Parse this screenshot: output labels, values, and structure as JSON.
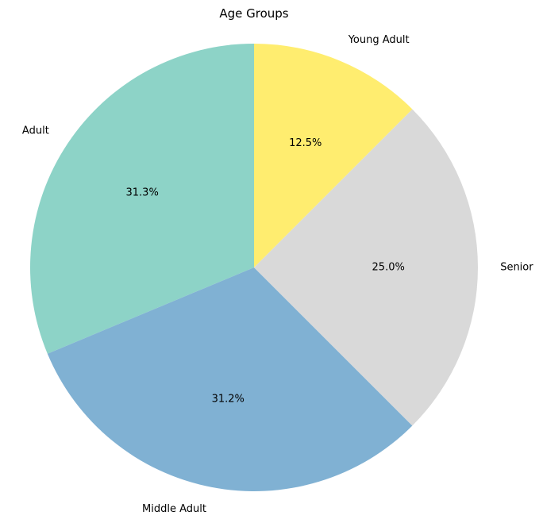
{
  "chart_data": {
    "type": "pie",
    "title": "Age Groups",
    "start_angle_deg": 90,
    "direction": "counterclockwise",
    "slices": [
      {
        "label": "Adult",
        "value": 31.3,
        "pct_label": "31.3%",
        "color": "#8dd3c7"
      },
      {
        "label": "Middle Adult",
        "value": 31.2,
        "pct_label": "31.2%",
        "color": "#80b1d3"
      },
      {
        "label": "Senior",
        "value": 25.0,
        "pct_label": "25.0%",
        "color": "#d9d9d9"
      },
      {
        "label": "Young Adult",
        "value": 12.5,
        "pct_label": "12.5%",
        "color": "#ffed6f"
      }
    ]
  }
}
